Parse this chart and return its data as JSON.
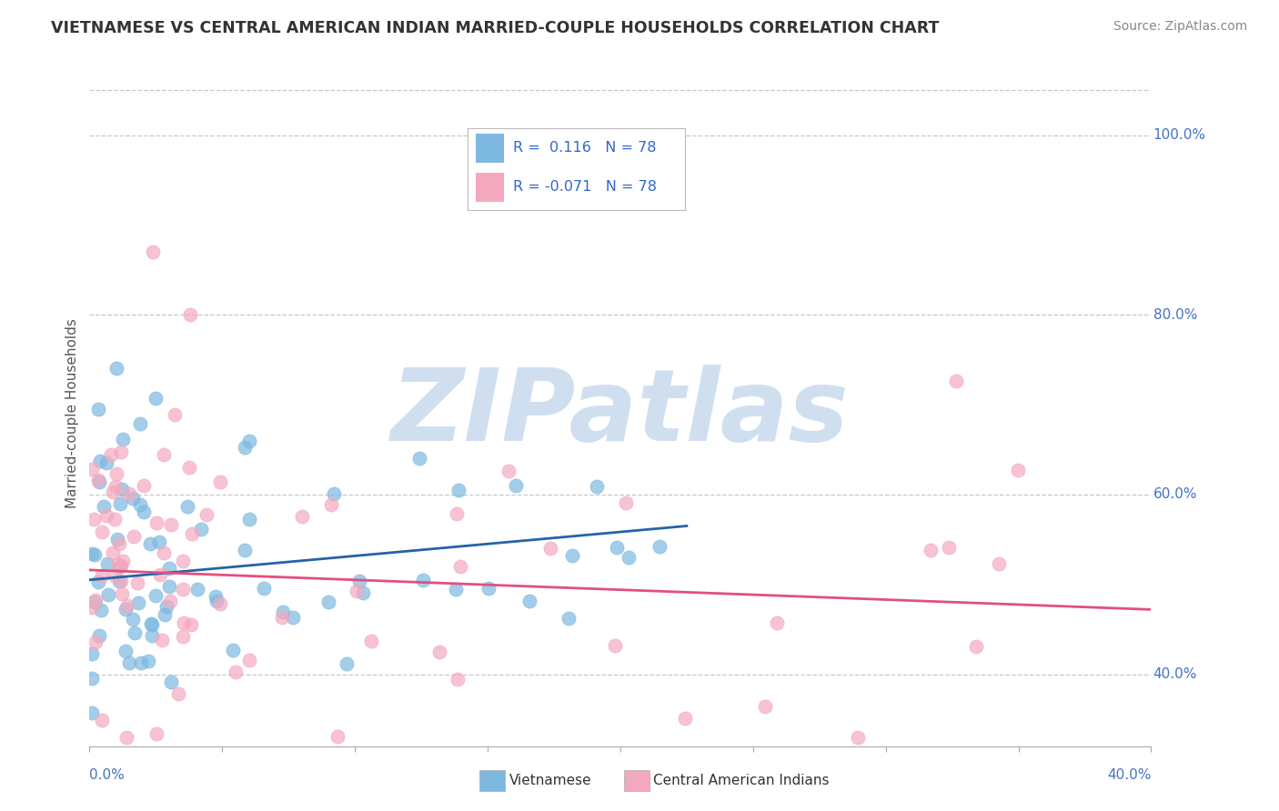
{
  "title": "VIETNAMESE VS CENTRAL AMERICAN INDIAN MARRIED-COUPLE HOUSEHOLDS CORRELATION CHART",
  "source": "Source: ZipAtlas.com",
  "ylabel": "Married-couple Households",
  "ytick_vals": [
    0.4,
    0.6,
    0.8,
    1.0
  ],
  "ytick_labels": [
    "40.0%",
    "60.0%",
    "80.0%",
    "100.0%"
  ],
  "xlim": [
    0.0,
    0.4
  ],
  "ylim": [
    0.32,
    1.06
  ],
  "blue_R": 0.116,
  "pink_R": -0.071,
  "N": 78,
  "blue_color": "#7db8e0",
  "pink_color": "#f4a8be",
  "blue_line_color": "#2563a8",
  "pink_line_color": "#e05080",
  "watermark": "ZIPatlas",
  "watermark_color": "#d0dff0",
  "background_color": "#ffffff",
  "grid_color": "#c8c8c8",
  "title_color": "#333333",
  "source_color": "#888888",
  "axis_label_color": "#4472c4",
  "ylabel_color": "#555555",
  "legend_text_color": "#333333",
  "legend_val_color": "#3366cc",
  "blue_line_x": [
    0.0,
    0.225
  ],
  "blue_line_y": [
    0.505,
    0.565
  ],
  "pink_line_x": [
    0.0,
    0.4
  ],
  "pink_line_y": [
    0.516,
    0.472
  ]
}
